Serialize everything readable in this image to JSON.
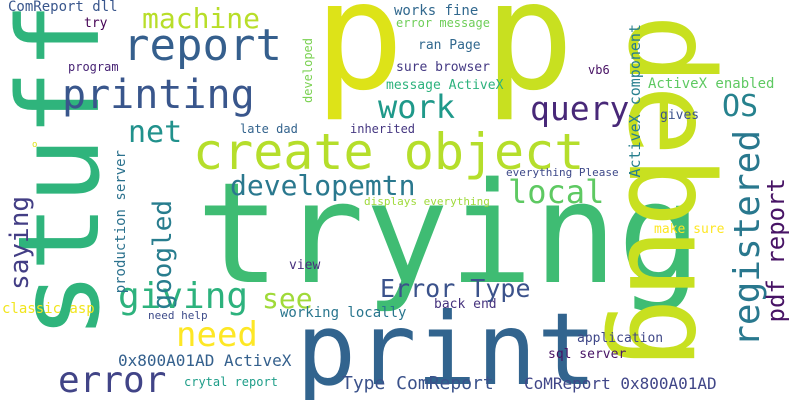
{
  "words": [
    {
      "text": "p",
      "color": "#dde318"
    },
    {
      "text": "p",
      "color": "#c8e020"
    },
    {
      "text": "trying",
      "color": "#3fbc73"
    },
    {
      "text": "stuff",
      "color": "#2fb47c"
    },
    {
      "text": "debug",
      "color": "#c8e020"
    },
    {
      "text": "print",
      "color": "#32648e"
    },
    {
      "text": "create object",
      "color": "#b5de2b"
    },
    {
      "text": "report",
      "color": "#355f8d"
    },
    {
      "text": "printing",
      "color": "#39568c"
    },
    {
      "text": "error",
      "color": "#414487"
    },
    {
      "text": "giving",
      "color": "#2db27d"
    },
    {
      "text": "registered",
      "color": "#29788e"
    },
    {
      "text": "need",
      "color": "#fde725"
    },
    {
      "text": "machine",
      "color": "#b8de29"
    },
    {
      "text": "query",
      "color": "#482878"
    },
    {
      "text": "developemtn",
      "color": "#2a788e"
    },
    {
      "text": "pdf report",
      "color": "#471365"
    },
    {
      "text": "work",
      "color": "#1f998a"
    },
    {
      "text": "Error Type",
      "color": "#3b528b"
    },
    {
      "text": "local",
      "color": "#5ec962"
    },
    {
      "text": "googled",
      "color": "#287d8e"
    },
    {
      "text": "saying",
      "color": "#433e85"
    },
    {
      "text": "net",
      "color": "#21918c"
    },
    {
      "text": "OS",
      "color": "#26828e"
    },
    {
      "text": "see",
      "color": "#a0da39"
    },
    {
      "text": "Type ComReport",
      "color": "#3b528b"
    },
    {
      "text": "0x800A01AD ActiveX",
      "color": "#34608d"
    },
    {
      "text": "CoMReport 0x800A01AD",
      "color": "#404688"
    },
    {
      "text": "ComReport dll",
      "color": "#39568c"
    },
    {
      "text": "works fine",
      "color": "#31688e"
    },
    {
      "text": "error message",
      "color": "#6ece58"
    },
    {
      "text": "ran Page",
      "color": "#31688e"
    },
    {
      "text": "sure browser",
      "color": "#443983"
    },
    {
      "text": "message ActiveX",
      "color": "#2db27d"
    },
    {
      "text": "vb6",
      "color": "#471164"
    },
    {
      "text": "ActiveX component",
      "color": "#277f8e"
    },
    {
      "text": "ActiveX enabled",
      "color": "#5ec962"
    },
    {
      "text": "gives",
      "color": "#3b528b"
    },
    {
      "text": "try",
      "color": "#440154"
    },
    {
      "text": "program",
      "color": "#482475"
    },
    {
      "text": "developed",
      "color": "#7ad151"
    },
    {
      "text": "production server",
      "color": "#2c728e"
    },
    {
      "text": "late dad",
      "color": "#33638d"
    },
    {
      "text": "inherited",
      "color": "#453781"
    },
    {
      "text": "everything Please",
      "color": "#3e4989"
    },
    {
      "text": "displays everything",
      "color": "#9fda3a"
    },
    {
      "text": "make sure",
      "color": "#fde725"
    },
    {
      "text": "view",
      "color": "#472f7d"
    },
    {
      "text": "back end",
      "color": "#46337e"
    },
    {
      "text": "working locally",
      "color": "#2a768e"
    },
    {
      "text": "need help",
      "color": "#3e4c8a"
    },
    {
      "text": "classic asp",
      "color": "#f1e51d"
    },
    {
      "text": "application",
      "color": "#3f4788"
    },
    {
      "text": "sql server",
      "color": "#471365"
    },
    {
      "text": "crytal report",
      "color": "#1f9e89"
    },
    {
      "text": "o",
      "color": "#dde318"
    }
  ]
}
